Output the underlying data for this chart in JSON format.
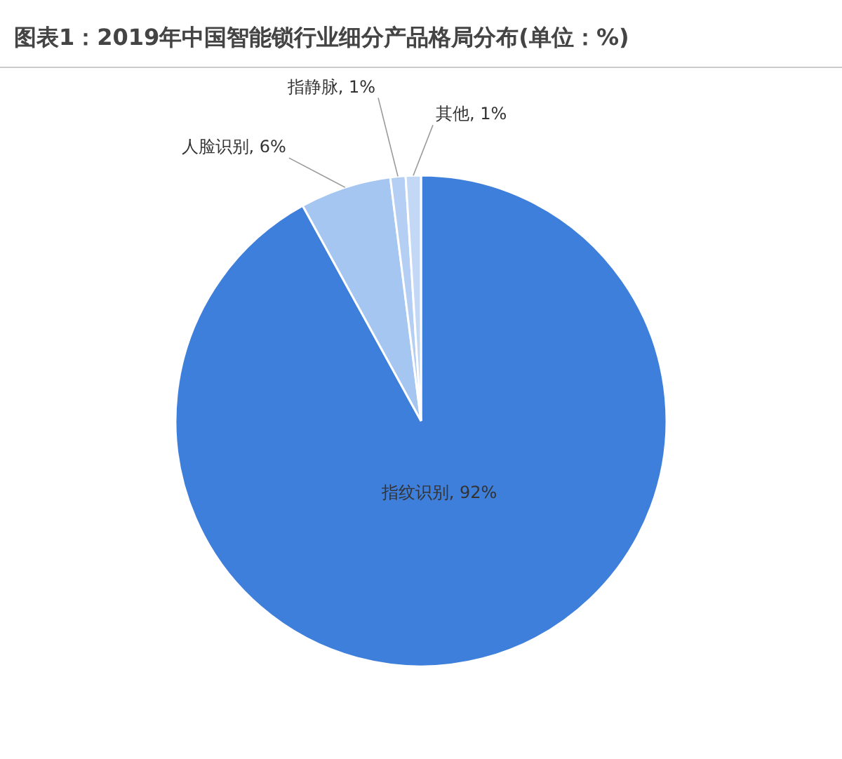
{
  "chart_data": {
    "type": "pie",
    "title": "图表1：2019年中国智能锁行业细分产品格局分布(单位：%)",
    "categories": [
      "指纹识别",
      "人脸识别",
      "指静脉",
      "其他"
    ],
    "values": [
      92,
      6,
      1,
      1
    ],
    "value_labels": [
      ", 92%",
      ", 6%",
      ", 1%",
      ", 1%"
    ],
    "colors": [
      "#3f7fdc",
      "#a6c6f2",
      "#b4cff3",
      "#c3d8f5"
    ]
  }
}
